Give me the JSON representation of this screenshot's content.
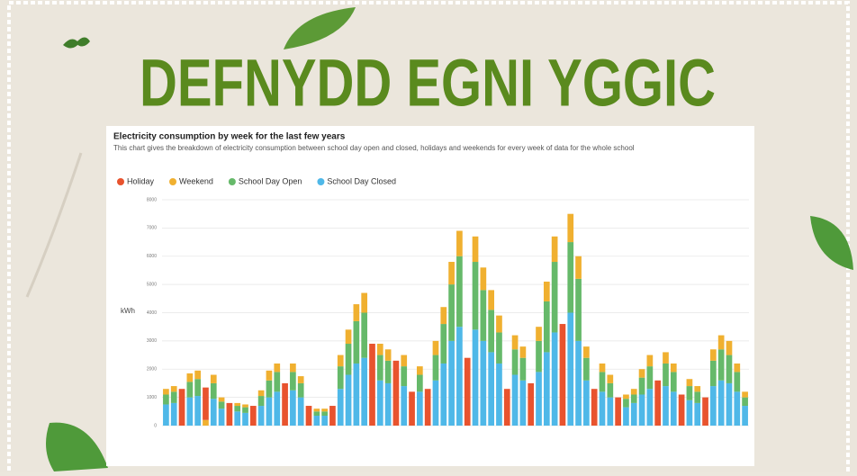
{
  "poster_title": "DEFNYDD EGNI YGGIC",
  "chart_data": {
    "type": "stacked_bar",
    "title": "Electricity consumption by week for the last few years",
    "subtitle": "This chart gives the breakdown of electricity consumption between school day open and closed, holidays and weekends for every week of data for the whole school",
    "ylabel": "kWh",
    "ylim": [
      0,
      8000
    ],
    "yticks": [
      0,
      1000,
      2000,
      3000,
      4000,
      5000,
      6000,
      7000,
      8000
    ],
    "grid": true,
    "legend": "top-left",
    "series": [
      {
        "name": "Holiday",
        "color": "#e8532e",
        "values": [
          0,
          0,
          1300,
          0,
          0,
          1150,
          0,
          0,
          800,
          0,
          0,
          700,
          0,
          0,
          0,
          1500,
          0,
          0,
          700,
          0,
          0,
          700,
          0,
          0,
          0,
          0,
          2900,
          0,
          0,
          2300,
          0,
          1200,
          0,
          1300,
          0,
          0,
          0,
          0,
          2400,
          0,
          0,
          0,
          0,
          1300,
          0,
          0,
          1500,
          0,
          0,
          0,
          3600,
          0,
          0,
          0,
          1300,
          0,
          0,
          1000,
          0,
          0,
          0,
          0,
          1600,
          0,
          0,
          1100,
          0,
          0,
          1000,
          0,
          0,
          0,
          0,
          0
        ]
      },
      {
        "name": "Weekend",
        "color": "#f0b030",
        "values": [
          200,
          200,
          0,
          300,
          300,
          200,
          300,
          150,
          0,
          100,
          100,
          0,
          200,
          350,
          300,
          0,
          300,
          250,
          0,
          100,
          100,
          0,
          400,
          500,
          600,
          700,
          0,
          400,
          400,
          0,
          400,
          0,
          300,
          0,
          500,
          600,
          800,
          900,
          0,
          900,
          800,
          700,
          600,
          0,
          500,
          400,
          0,
          500,
          700,
          900,
          0,
          1000,
          800,
          400,
          0,
          300,
          300,
          0,
          150,
          200,
          300,
          400,
          0,
          400,
          300,
          0,
          250,
          200,
          0,
          400,
          500,
          500,
          300,
          200
        ]
      },
      {
        "name": "School Day Open",
        "color": "#66b96a",
        "values": [
          350,
          400,
          0,
          550,
          600,
          0,
          550,
          250,
          0,
          200,
          200,
          0,
          350,
          600,
          700,
          0,
          650,
          500,
          0,
          150,
          150,
          0,
          800,
          1100,
          1500,
          1600,
          0,
          900,
          800,
          0,
          700,
          0,
          600,
          0,
          900,
          1400,
          2000,
          2500,
          0,
          2400,
          1800,
          1500,
          1100,
          0,
          900,
          800,
          0,
          1100,
          1800,
          2500,
          0,
          2500,
          2200,
          800,
          0,
          700,
          500,
          0,
          300,
          300,
          600,
          800,
          0,
          800,
          700,
          0,
          500,
          400,
          0,
          900,
          1100,
          1000,
          700,
          300
        ]
      },
      {
        "name": "School Day Closed",
        "color": "#4fb8e8",
        "values": [
          750,
          800,
          0,
          1000,
          1050,
          0,
          950,
          600,
          0,
          500,
          450,
          0,
          700,
          1000,
          1200,
          0,
          1250,
          1000,
          0,
          350,
          350,
          0,
          1300,
          1800,
          2200,
          2400,
          0,
          1600,
          1500,
          0,
          1400,
          0,
          1200,
          0,
          1600,
          2200,
          3000,
          3500,
          0,
          3400,
          3000,
          2600,
          2200,
          0,
          1800,
          1600,
          0,
          1900,
          2600,
          3300,
          0,
          4000,
          3000,
          1600,
          0,
          1200,
          1000,
          0,
          650,
          800,
          1100,
          1300,
          0,
          1400,
          1200,
          0,
          900,
          800,
          0,
          1400,
          1600,
          1500,
          1200,
          700
        ]
      }
    ]
  }
}
